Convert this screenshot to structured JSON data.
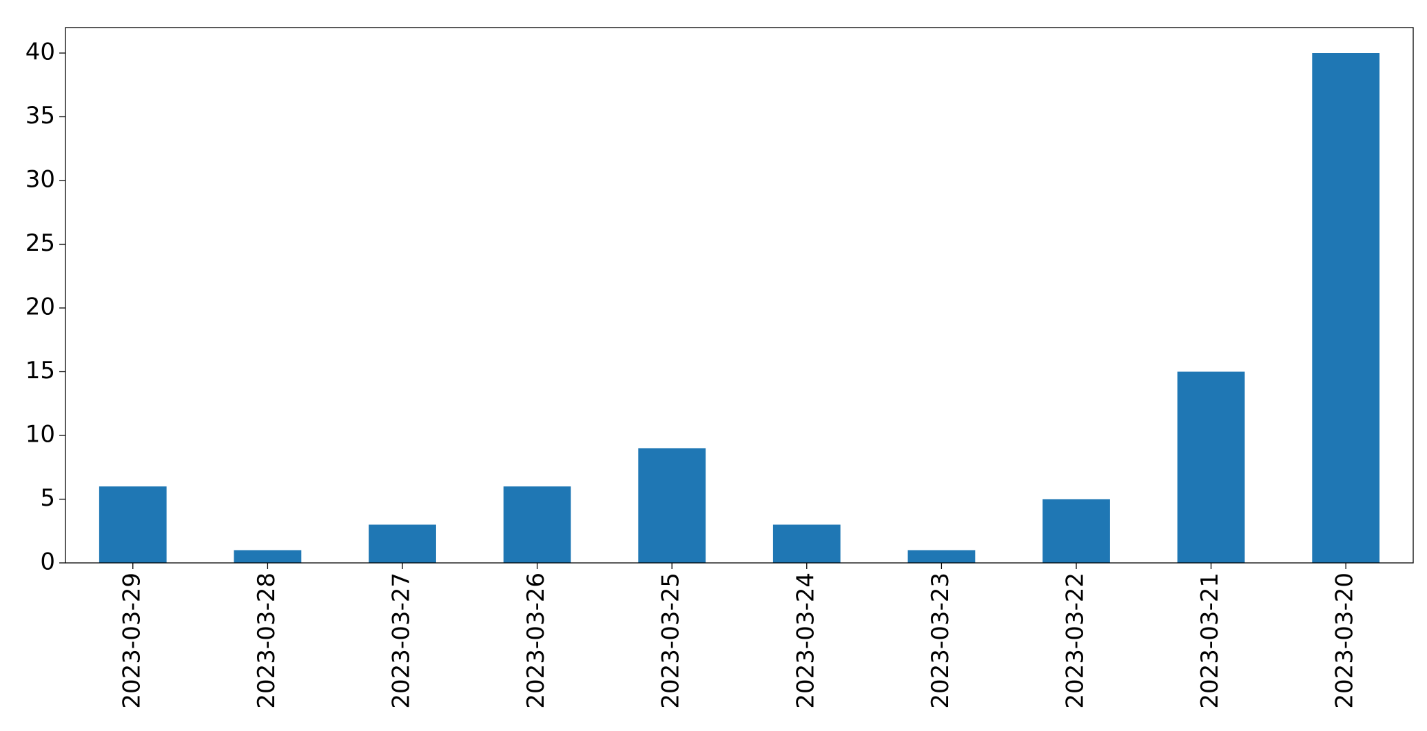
{
  "chart_data": {
    "type": "bar",
    "categories": [
      "2023-03-29",
      "2023-03-28",
      "2023-03-27",
      "2023-03-26",
      "2023-03-25",
      "2023-03-24",
      "2023-03-23",
      "2023-03-22",
      "2023-03-21",
      "2023-03-20"
    ],
    "values": [
      6,
      1,
      3,
      6,
      9,
      3,
      1,
      5,
      15,
      40
    ],
    "color": "#1f77b4",
    "ylim": [
      0,
      42
    ],
    "yticks": [
      0,
      5,
      10,
      15,
      20,
      25,
      30,
      35,
      40
    ],
    "grid": false
  }
}
